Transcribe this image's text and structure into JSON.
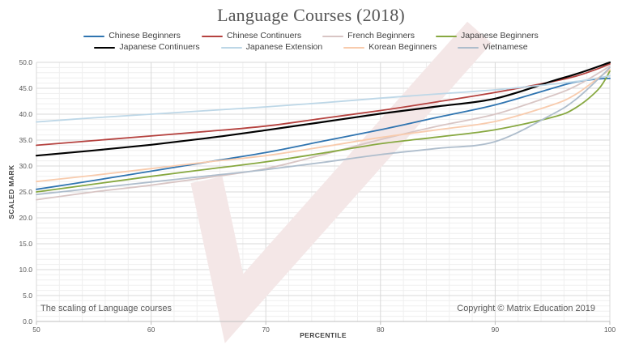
{
  "title": "Language Courses (2018)",
  "footer": {
    "note": "The scaling of Language courses",
    "copyright": "Copyright © Matrix Education 2019"
  },
  "watermark": {
    "icon": "check-mark",
    "color": "#f4e7e7"
  },
  "chart_data": {
    "type": "line",
    "title": "Language Courses (2018)",
    "xlabel": "PERCENTILE",
    "ylabel": "SCALED MARK",
    "xlim": [
      50,
      100
    ],
    "ylim": [
      0,
      50
    ],
    "grid": {
      "major_h_step": 5,
      "minor_h_step": 1,
      "major_v_step": 10,
      "minor_v_step": 2,
      "major_color": "#d9d9d9",
      "minor_color": "#efefef",
      "axis_color": "#bfbfbf"
    },
    "legend_position": "top",
    "legend_rows": [
      [
        0,
        1,
        2,
        3
      ],
      [
        4,
        5,
        6,
        7
      ]
    ],
    "x_ticks": {
      "values": [
        50,
        60,
        70,
        80,
        90,
        100
      ],
      "labels": [
        "50",
        "60",
        "70",
        "80",
        "90",
        "100"
      ]
    },
    "y_ticks": {
      "values": [
        0,
        5,
        10,
        15,
        20,
        25,
        30,
        35,
        40,
        45,
        50
      ],
      "labels": [
        "0.0",
        "5.0",
        "10.0",
        "15.0",
        "20.0",
        "25.0",
        "30.0",
        "35.0",
        "40.0",
        "45.0",
        "50.0"
      ]
    },
    "x": [
      50,
      55,
      60,
      65,
      70,
      75,
      80,
      85,
      90,
      95,
      97,
      99,
      100
    ],
    "series": [
      {
        "name": "Chinese Beginners",
        "color": "#2f74b0",
        "values": [
          25.5,
          27.2,
          29.0,
          30.8,
          32.6,
          34.8,
          37.0,
          39.4,
          41.8,
          45.0,
          46.2,
          46.8,
          46.9
        ]
      },
      {
        "name": "Chinese Continuers",
        "color": "#b5423f",
        "values": [
          34.0,
          34.9,
          35.8,
          36.7,
          37.7,
          39.2,
          40.7,
          42.4,
          44.2,
          46.3,
          47.3,
          48.8,
          49.7
        ]
      },
      {
        "name": "French Beginners",
        "color": "#d8c5c4",
        "values": [
          23.5,
          25.0,
          26.3,
          27.8,
          29.5,
          32.2,
          35.1,
          37.7,
          40.0,
          43.6,
          45.4,
          47.9,
          49.3
        ]
      },
      {
        "name": "Japanese Beginners",
        "color": "#87a840",
        "values": [
          25.0,
          26.5,
          28.0,
          29.4,
          30.8,
          32.5,
          34.3,
          35.6,
          37.0,
          39.4,
          41.2,
          44.8,
          48.3
        ]
      },
      {
        "name": "Japanese Continuers",
        "color": "#000000",
        "values": [
          32.0,
          33.0,
          34.1,
          35.4,
          36.9,
          38.5,
          40.1,
          41.5,
          43.0,
          46.4,
          47.7,
          49.2,
          50.0
        ]
      },
      {
        "name": "Japanese Extension",
        "color": "#bdd7e7",
        "values": [
          38.5,
          39.3,
          40.0,
          40.7,
          41.4,
          42.2,
          43.1,
          43.9,
          44.7,
          45.8,
          46.3,
          47.0,
          47.4
        ]
      },
      {
        "name": "Korean Beginners",
        "color": "#f8cbad",
        "values": [
          27.0,
          28.2,
          29.5,
          30.8,
          32.0,
          33.7,
          35.5,
          37.0,
          38.6,
          41.8,
          43.8,
          47.0,
          48.6
        ]
      },
      {
        "name": "Vietnamese",
        "color": "#aebdcc",
        "values": [
          24.5,
          25.7,
          26.9,
          28.1,
          29.3,
          30.7,
          32.2,
          33.4,
          34.7,
          40.0,
          42.8,
          46.8,
          49.0
        ]
      }
    ]
  }
}
